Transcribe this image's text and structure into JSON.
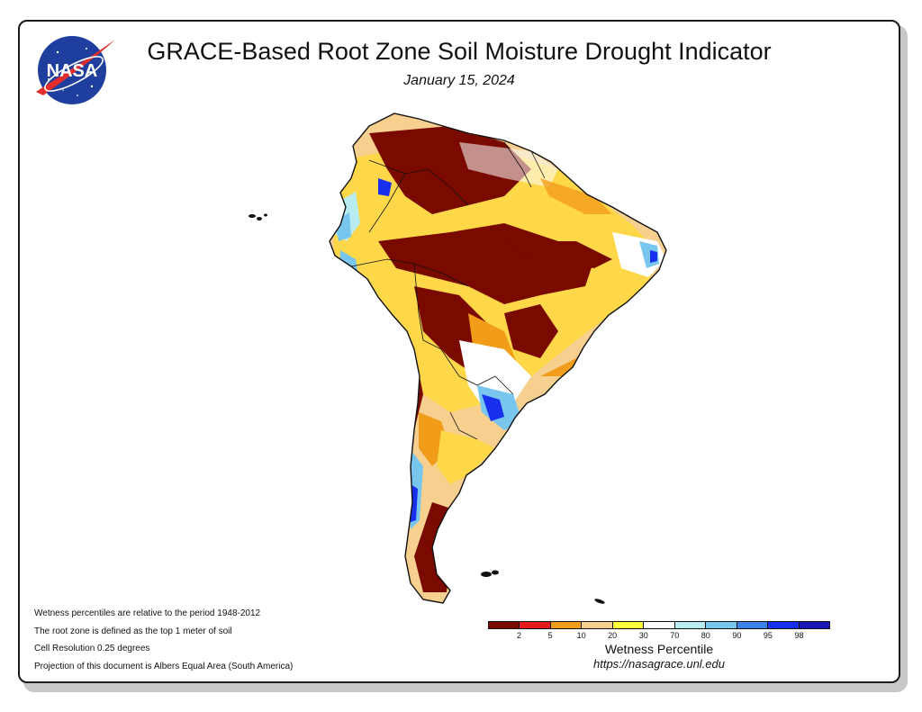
{
  "title": "GRACE-Based Root Zone Soil Moisture Drought Indicator",
  "date": "January 15, 2024",
  "logo": {
    "text": "NASA",
    "bg_color": "#1e3f9e",
    "swoosh_color": "#e02c2c"
  },
  "notes": [
    "Wetness percentiles are relative to the period 1948-2012",
    "The root zone is defined as the top 1 meter of soil",
    "Cell Resolution 0.25 degrees",
    "Projection of this document is Albers Equal Area (South America)"
  ],
  "legend": {
    "title": "Wetness Percentile",
    "colors": [
      "#7a0a00",
      "#e41a1c",
      "#f29d1a",
      "#f7cf8f",
      "#ffff3a",
      "#ffffff",
      "#b8ecf0",
      "#78c6ee",
      "#3c82e8",
      "#1830ee",
      "#1a18b4"
    ],
    "ticks": [
      "2",
      "5",
      "10",
      "20",
      "30",
      "70",
      "80",
      "90",
      "95",
      "98"
    ]
  },
  "url": "https://nasagrace.unl.edu"
}
